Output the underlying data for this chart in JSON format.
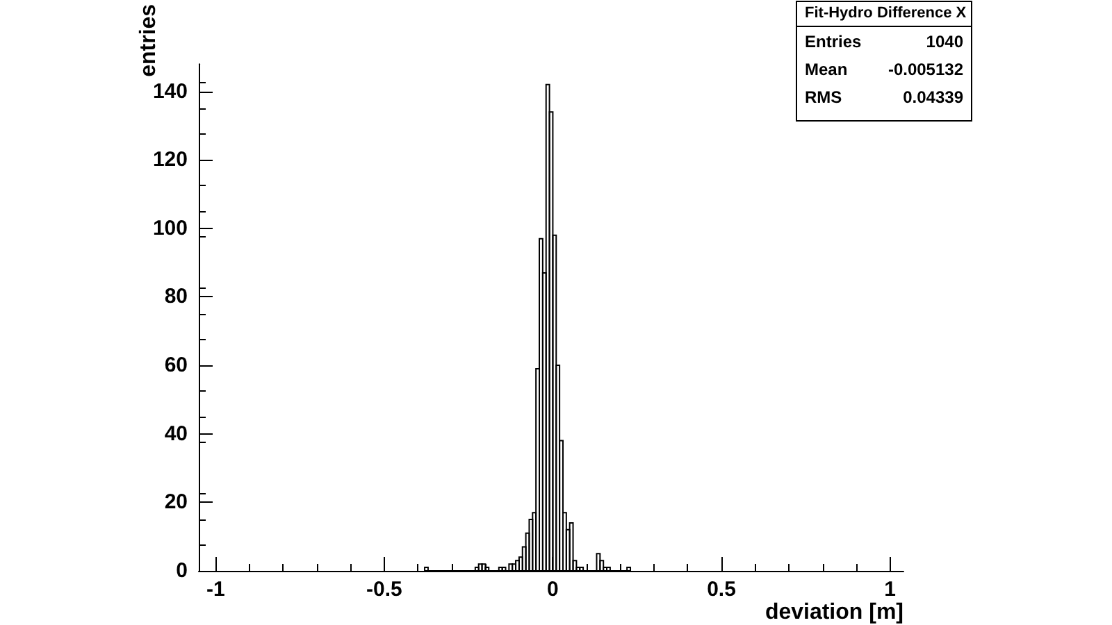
{
  "chart_data": {
    "type": "histogram",
    "title": "Fit-Hydro Difference X",
    "xlabel": "deviation [m]",
    "ylabel": "entries",
    "annotations": [
      "Entries 1040",
      "Mean -0.005132",
      "RMS 0.04339"
    ],
    "color": "#000000",
    "bins": [
      -0.38,
      -0.37,
      -0.23,
      -0.22,
      -0.21,
      -0.2,
      -0.19,
      -0.16,
      -0.15,
      -0.14,
      -0.13,
      -0.12,
      -0.11,
      -0.1,
      -0.09,
      -0.08,
      -0.07,
      -0.06,
      -0.05,
      -0.04,
      -0.03,
      -0.02,
      -0.01,
      0,
      0.01,
      0.02,
      0.03,
      0.04,
      0.05,
      0.06,
      0.07,
      0.08,
      0.09,
      0.13,
      0.14,
      0.15,
      0.16,
      0.17,
      0.22,
      0.23
    ],
    "values": [
      1,
      0,
      1,
      2,
      2,
      1,
      0,
      1,
      1,
      0,
      2,
      2,
      3,
      4,
      7,
      11,
      15,
      17,
      59,
      97,
      87,
      142,
      134,
      98,
      60,
      38,
      17,
      12,
      14,
      3,
      1,
      1,
      0,
      5,
      3,
      1,
      1,
      0,
      1
    ],
    "xlim": [
      -1.05,
      1.04
    ],
    "xticks": [
      -1,
      -0.5,
      0,
      0.5,
      1
    ],
    "ylim": [
      0,
      148
    ],
    "yticks": [
      0,
      20,
      40,
      60,
      80,
      100,
      120,
      140
    ],
    "grid": false
  }
}
